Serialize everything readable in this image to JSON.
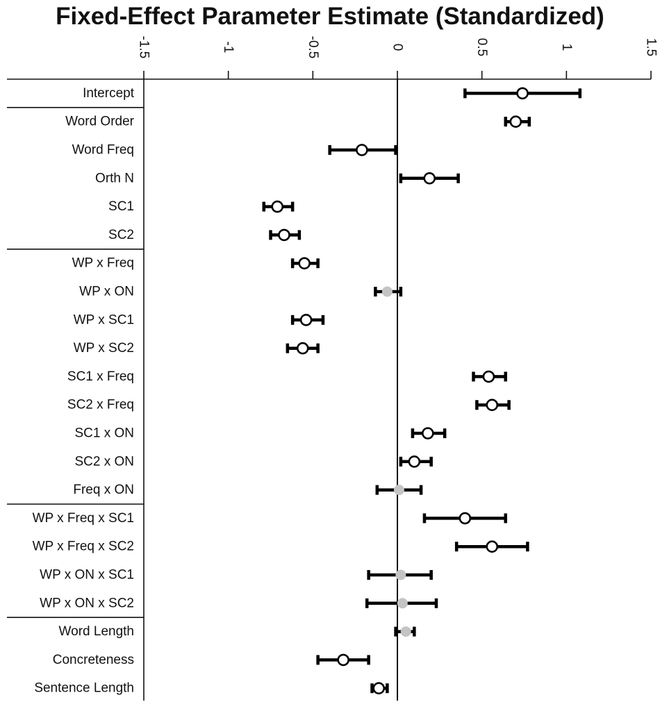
{
  "chart_data": {
    "type": "forest",
    "title": "Fixed-Effect Parameter Estimate (Standardized)",
    "xlim": [
      -1.5,
      1.5
    ],
    "xticks": [
      {
        "value": -1.5,
        "label": "-1.5"
      },
      {
        "value": -1,
        "label": "-1"
      },
      {
        "value": -0.5,
        "label": "-0.5"
      },
      {
        "value": 0,
        "label": "0"
      },
      {
        "value": 0.5,
        "label": "0.5"
      },
      {
        "value": 1,
        "label": "1"
      },
      {
        "value": 1.5,
        "label": "1.5"
      }
    ],
    "reference_line": 0,
    "grid": false,
    "group_breaks_after": [
      "Intercept",
      "SC2",
      "Freq x ON",
      "WP x ON x SC2"
    ],
    "marker_legend": {
      "open_circle": "significant",
      "gray_dot": "not significant"
    },
    "rows": [
      {
        "label": "Intercept",
        "estimate": 0.74,
        "lower": 0.4,
        "upper": 1.08,
        "significant": true
      },
      {
        "label": "Word Order",
        "estimate": 0.7,
        "lower": 0.64,
        "upper": 0.78,
        "significant": true
      },
      {
        "label": "Word Freq",
        "estimate": -0.21,
        "lower": -0.4,
        "upper": -0.01,
        "significant": true
      },
      {
        "label": "Orth N",
        "estimate": 0.19,
        "lower": 0.02,
        "upper": 0.36,
        "significant": true
      },
      {
        "label": "SC1",
        "estimate": -0.71,
        "lower": -0.79,
        "upper": -0.62,
        "significant": true
      },
      {
        "label": "SC2",
        "estimate": -0.67,
        "lower": -0.75,
        "upper": -0.58,
        "significant": true
      },
      {
        "label": "WP x Freq",
        "estimate": -0.55,
        "lower": -0.62,
        "upper": -0.47,
        "significant": true
      },
      {
        "label": "WP x ON",
        "estimate": -0.06,
        "lower": -0.13,
        "upper": 0.02,
        "significant": false
      },
      {
        "label": "WP x SC1",
        "estimate": -0.54,
        "lower": -0.62,
        "upper": -0.44,
        "significant": true
      },
      {
        "label": "WP x SC2",
        "estimate": -0.56,
        "lower": -0.65,
        "upper": -0.47,
        "significant": true
      },
      {
        "label": "SC1 x Freq",
        "estimate": 0.54,
        "lower": 0.45,
        "upper": 0.64,
        "significant": true
      },
      {
        "label": "SC2 x Freq",
        "estimate": 0.56,
        "lower": 0.47,
        "upper": 0.66,
        "significant": true
      },
      {
        "label": "SC1 x ON",
        "estimate": 0.18,
        "lower": 0.09,
        "upper": 0.28,
        "significant": true
      },
      {
        "label": "SC2 x ON",
        "estimate": 0.1,
        "lower": 0.02,
        "upper": 0.2,
        "significant": true
      },
      {
        "label": "Freq x ON",
        "estimate": 0.01,
        "lower": -0.12,
        "upper": 0.14,
        "significant": false
      },
      {
        "label": "WP x Freq x SC1",
        "estimate": 0.4,
        "lower": 0.16,
        "upper": 0.64,
        "significant": true
      },
      {
        "label": "WP x Freq x SC2",
        "estimate": 0.56,
        "lower": 0.35,
        "upper": 0.77,
        "significant": true
      },
      {
        "label": "WP x ON x SC1",
        "estimate": 0.02,
        "lower": -0.17,
        "upper": 0.2,
        "significant": false
      },
      {
        "label": "WP x ON x SC2",
        "estimate": 0.03,
        "lower": -0.18,
        "upper": 0.23,
        "significant": false
      },
      {
        "label": "Word Length",
        "estimate": 0.05,
        "lower": -0.01,
        "upper": 0.1,
        "significant": false
      },
      {
        "label": "Concreteness",
        "estimate": -0.32,
        "lower": -0.47,
        "upper": -0.17,
        "significant": true
      },
      {
        "label": "Sentence Length",
        "estimate": -0.11,
        "lower": -0.15,
        "upper": -0.06,
        "significant": true
      }
    ]
  }
}
